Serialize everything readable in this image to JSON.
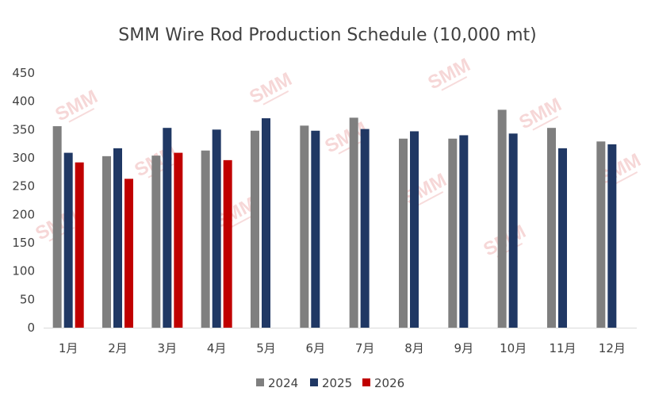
{
  "chart_data": {
    "type": "bar",
    "title": "SMM Wire Rod Production Schedule (10,000 mt)",
    "xlabel": "",
    "ylabel": "",
    "ylim": [
      0,
      450
    ],
    "yticks": [
      0,
      50,
      100,
      150,
      200,
      250,
      300,
      350,
      400,
      450
    ],
    "grid": false,
    "legend_position": "bottom-center",
    "categories": [
      "1月",
      "2月",
      "3月",
      "4月",
      "5月",
      "6月",
      "7月",
      "8月",
      "9月",
      "10月",
      "11月",
      "12月"
    ],
    "series": [
      {
        "name": "2024",
        "color": "#7f7f7f",
        "values": [
          356,
          303,
          304,
          313,
          348,
          357,
          371,
          334,
          334,
          385,
          353,
          329
        ]
      },
      {
        "name": "2025",
        "color": "#203864",
        "values": [
          309,
          317,
          353,
          350,
          370,
          348,
          351,
          347,
          340,
          343,
          317,
          324
        ]
      },
      {
        "name": "2026",
        "color": "#c00000",
        "values": [
          292,
          263,
          309,
          296,
          null,
          null,
          null,
          null,
          null,
          null,
          null,
          null
        ]
      }
    ]
  },
  "watermark": {
    "text": "SMM",
    "color": "#f0b8b8"
  }
}
